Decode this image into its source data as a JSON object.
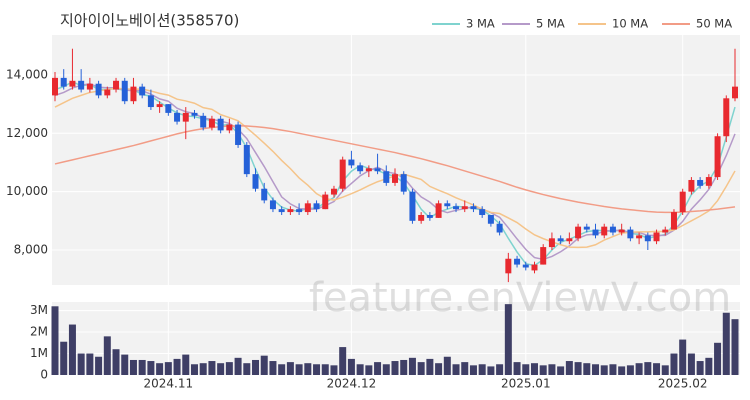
{
  "chart_data": [
    {
      "type": "candlestick",
      "title": "지아이이노베이션(358570)",
      "categories": [
        null,
        null,
        null,
        null,
        null,
        null,
        null,
        null,
        null,
        null,
        null,
        null,
        null,
        "2024.11",
        null,
        null,
        null,
        null,
        null,
        null,
        null,
        null,
        null,
        null,
        null,
        null,
        null,
        null,
        null,
        null,
        null,
        null,
        null,
        null,
        "2024.12",
        null,
        null,
        null,
        null,
        null,
        null,
        null,
        null,
        null,
        null,
        null,
        null,
        null,
        null,
        null,
        null,
        null,
        null,
        null,
        "2025.01",
        null,
        null,
        null,
        null,
        null,
        null,
        null,
        null,
        null,
        null,
        null,
        null,
        null,
        null,
        null,
        null,
        null,
        "2025.02",
        null,
        null,
        null,
        null,
        null,
        null
      ],
      "open": [
        13300,
        13900,
        13600,
        13800,
        13500,
        13700,
        13300,
        13500,
        13800,
        13100,
        13600,
        13300,
        12900,
        13000,
        12700,
        12400,
        12700,
        12600,
        12200,
        12500,
        12100,
        12300,
        11600,
        10600,
        10100,
        9700,
        9400,
        9300,
        9400,
        9300,
        9600,
        9400,
        9900,
        10100,
        11100,
        10900,
        10700,
        10800,
        10700,
        10300,
        10600,
        10000,
        9000,
        9200,
        9100,
        9600,
        9500,
        9400,
        9500,
        9400,
        9200,
        8900,
        7200,
        7700,
        7500,
        7300,
        7500,
        8100,
        8400,
        8300,
        8400,
        8800,
        8700,
        8500,
        8800,
        8600,
        8700,
        8400,
        8500,
        8300,
        8600,
        8700,
        9300,
        10000,
        10400,
        10200,
        10500,
        11900,
        13200
      ],
      "high": [
        14100,
        14200,
        14900,
        14200,
        13900,
        13800,
        13600,
        13900,
        13900,
        13900,
        13700,
        13500,
        13100,
        13000,
        12800,
        12900,
        12800,
        12700,
        12600,
        12600,
        12500,
        12400,
        11700,
        10800,
        10300,
        9800,
        9500,
        9500,
        9600,
        9700,
        9700,
        10000,
        10200,
        11200,
        11400,
        11000,
        10900,
        11300,
        10900,
        10800,
        10700,
        10100,
        9300,
        9300,
        9700,
        9700,
        9600,
        9700,
        9600,
        9500,
        9200,
        9000,
        7900,
        7800,
        7600,
        7600,
        8200,
        8600,
        8500,
        8600,
        8900,
        8900,
        8900,
        8900,
        8900,
        8900,
        8800,
        8600,
        8600,
        8700,
        8800,
        9400,
        10100,
        10500,
        10500,
        10600,
        12000,
        13300,
        14900
      ],
      "low": [
        13100,
        13500,
        13500,
        13400,
        13400,
        13200,
        13200,
        13400,
        13000,
        13000,
        13200,
        12800,
        12700,
        12600,
        12300,
        11800,
        12500,
        12100,
        12100,
        12000,
        12000,
        11500,
        10500,
        10000,
        9600,
        9300,
        9200,
        9200,
        9200,
        9200,
        9300,
        9400,
        9800,
        10000,
        10800,
        10600,
        10500,
        10600,
        10200,
        10200,
        9900,
        8900,
        8900,
        9000,
        9100,
        9400,
        9300,
        9300,
        9300,
        9100,
        8800,
        8500,
        6900,
        7400,
        7300,
        7200,
        7500,
        8000,
        8200,
        8200,
        8300,
        8600,
        8400,
        8400,
        8500,
        8500,
        8300,
        8200,
        8000,
        8200,
        8500,
        8700,
        9200,
        9900,
        10100,
        10100,
        10400,
        11700,
        13100
      ],
      "close": [
        13900,
        13600,
        13800,
        13500,
        13700,
        13300,
        13500,
        13800,
        13100,
        13600,
        13300,
        12900,
        13000,
        12700,
        12400,
        12700,
        12600,
        12200,
        12500,
        12100,
        12300,
        11600,
        10600,
        10100,
        9700,
        9400,
        9300,
        9400,
        9300,
        9600,
        9400,
        9900,
        10100,
        11100,
        10900,
        10700,
        10800,
        10700,
        10300,
        10600,
        10000,
        9000,
        9200,
        9100,
        9600,
        9500,
        9400,
        9500,
        9400,
        9200,
        8900,
        8600,
        7700,
        7500,
        7400,
        7500,
        8100,
        8400,
        8300,
        8400,
        8800,
        8700,
        8500,
        8800,
        8600,
        8700,
        8400,
        8500,
        8300,
        8600,
        8700,
        9300,
        10000,
        10400,
        10200,
        10500,
        11900,
        13200,
        13600
      ],
      "up_color": "#e8292f",
      "down_color": "#2561d8",
      "series": [
        {
          "name": "3 MA",
          "color": "#7fd3cf",
          "values": [
            13500,
            13600,
            13770,
            13630,
            13670,
            13500,
            13500,
            13530,
            13470,
            13500,
            13330,
            13270,
            13070,
            12870,
            12700,
            12600,
            12570,
            12500,
            12430,
            12270,
            12300,
            12000,
            11500,
            10770,
            10130,
            9730,
            9470,
            9370,
            9330,
            9430,
            9430,
            9630,
            9800,
            10370,
            10700,
            10900,
            10800,
            10730,
            10600,
            10530,
            10300,
            9870,
            9400,
            9100,
            9300,
            9400,
            9500,
            9470,
            9430,
            9370,
            9170,
            8900,
            8400,
            7930,
            7530,
            7470,
            7670,
            8000,
            8270,
            8370,
            8500,
            8630,
            8670,
            8670,
            8630,
            8700,
            8570,
            8530,
            8400,
            8470,
            8530,
            8870,
            9330,
            9900,
            10200,
            10370,
            10870,
            11870,
            12900
          ]
        },
        {
          "name": "5 MA",
          "color": "#b59ac9",
          "values": [
            13300,
            13400,
            13550,
            13650,
            13700,
            13580,
            13560,
            13560,
            13480,
            13460,
            13460,
            13340,
            13180,
            13100,
            12860,
            12740,
            12680,
            12520,
            12480,
            12420,
            12340,
            12140,
            11820,
            11340,
            10860,
            10340,
            9820,
            9580,
            9420,
            9400,
            9400,
            9520,
            9660,
            10020,
            10280,
            10540,
            10720,
            10840,
            10680,
            10620,
            10480,
            10120,
            9820,
            9640,
            9380,
            9280,
            9360,
            9420,
            9480,
            9400,
            9280,
            9120,
            8760,
            8380,
            8020,
            7740,
            7680,
            7780,
            7940,
            8140,
            8400,
            8520,
            8540,
            8640,
            8680,
            8660,
            8600,
            8600,
            8500,
            8500,
            8500,
            8680,
            8980,
            9400,
            9720,
            10080,
            10600,
            11240,
            11980
          ]
        },
        {
          "name": "10 MA",
          "color": "#f5c48a",
          "values": [
            12900,
            13050,
            13200,
            13300,
            13400,
            13450,
            13500,
            13550,
            13520,
            13510,
            13520,
            13450,
            13370,
            13310,
            13170,
            13110,
            13030,
            12880,
            12820,
            12640,
            12540,
            12430,
            12190,
            11930,
            11660,
            11380,
            11070,
            10790,
            10470,
            10220,
            9930,
            9760,
            9710,
            9810,
            9930,
            10060,
            10210,
            10340,
            10440,
            10540,
            10600,
            10510,
            10420,
            10180,
            10050,
            9930,
            9790,
            9670,
            9540,
            9400,
            9290,
            9250,
            9100,
            8940,
            8720,
            8520,
            8390,
            8280,
            8180,
            8100,
            8090,
            8100,
            8180,
            8340,
            8460,
            8580,
            8610,
            8620,
            8620,
            8640,
            8630,
            8690,
            8840,
            9000,
            9160,
            9340,
            9690,
            10180,
            10710
          ]
        },
        {
          "name": "50 MA",
          "color": "#f29c86",
          "values": [
            10950,
            11020,
            11090,
            11160,
            11230,
            11300,
            11370,
            11440,
            11510,
            11580,
            11660,
            11740,
            11820,
            11900,
            11980,
            12050,
            12110,
            12160,
            12200,
            12230,
            12250,
            12260,
            12250,
            12230,
            12200,
            12160,
            12110,
            12060,
            12000,
            11940,
            11880,
            11820,
            11760,
            11700,
            11640,
            11580,
            11520,
            11460,
            11400,
            11340,
            11270,
            11200,
            11130,
            11050,
            10970,
            10890,
            10800,
            10710,
            10620,
            10530,
            10440,
            10350,
            10250,
            10150,
            10060,
            9980,
            9900,
            9830,
            9760,
            9700,
            9640,
            9590,
            9540,
            9490,
            9450,
            9410,
            9380,
            9350,
            9320,
            9300,
            9290,
            9290,
            9300,
            9320,
            9340,
            9370,
            9400,
            9440,
            9480
          ]
        }
      ],
      "ylim": [
        6800,
        15370
      ],
      "yticks": [
        {
          "value": 8000,
          "label": "8,000"
        },
        {
          "value": 10000,
          "label": "10,000"
        },
        {
          "value": 12000,
          "label": "12,000"
        },
        {
          "value": 14000,
          "label": "14,000"
        }
      ],
      "grid": true,
      "legend": "top-right",
      "watermark": "feature.enViewV.com"
    },
    {
      "type": "bar",
      "color": "#3f3f66",
      "values": [
        3200000,
        1550000,
        2350000,
        1000000,
        1000000,
        850000,
        1800000,
        1200000,
        950000,
        700000,
        700000,
        650000,
        550000,
        600000,
        750000,
        950000,
        500000,
        550000,
        650000,
        550000,
        600000,
        800000,
        550000,
        700000,
        900000,
        650000,
        500000,
        600000,
        500000,
        550000,
        500000,
        500000,
        450000,
        1300000,
        750000,
        500000,
        450000,
        600000,
        500000,
        650000,
        700000,
        800000,
        600000,
        750000,
        550000,
        850000,
        500000,
        600000,
        450000,
        500000,
        400000,
        500000,
        3300000,
        600000,
        500000,
        550000,
        450000,
        500000,
        400000,
        650000,
        600000,
        550000,
        500000,
        450000,
        500000,
        400000,
        450000,
        550000,
        600000,
        550000,
        450000,
        1000000,
        1650000,
        1000000,
        650000,
        800000,
        1500000,
        2900000,
        2600000
      ],
      "ylim": [
        0,
        3400000
      ],
      "yticks": [
        0,
        {
          "value": 1000000,
          "label": "1M"
        },
        {
          "value": 2000000,
          "label": "2M"
        },
        {
          "value": 3000000,
          "label": "3M"
        }
      ],
      "grid": true
    }
  ]
}
